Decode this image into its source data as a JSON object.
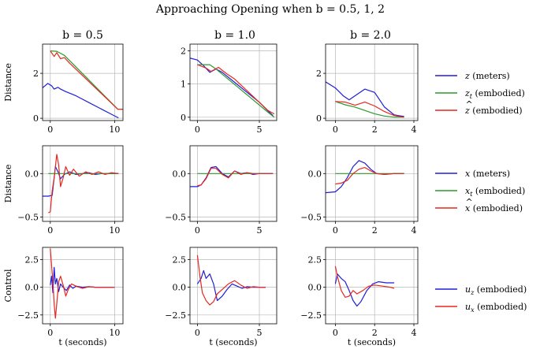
{
  "chart_data": {
    "type": "line",
    "title": "Approaching Opening when b = 0.5, 1, 2",
    "columns": [
      "b = 0.5",
      "b = 1.0",
      "b = 2.0"
    ],
    "xlabel": "t (seconds)",
    "colors": {
      "blue": "#1f1fd6",
      "green": "#2a9a2a",
      "red": "#e8261f"
    },
    "panels": [
      {
        "row": 0,
        "col": 0,
        "ylabel": "Distance",
        "xlim": [
          -1.2,
          11.3
        ],
        "ylim": [
          -0.1,
          3.3
        ],
        "xticks": [
          0,
          10
        ],
        "yticks": [
          0,
          2
        ],
        "xticklabels": [
          "0",
          "10"
        ],
        "yticklabels": [
          "0",
          "2"
        ],
        "series": [
          {
            "name": "z",
            "color": "blue",
            "x": [
              -1.2,
              -0.4,
              0.2,
              0.6,
              1.2,
              1.6,
              2.3,
              4,
              6,
              8,
              9.5,
              10.6
            ],
            "y": [
              1.35,
              1.55,
              1.45,
              1.3,
              1.38,
              1.3,
              1.2,
              1.0,
              0.7,
              0.4,
              0.18,
              0.02
            ]
          },
          {
            "name": "z_t",
            "color": "green",
            "x": [
              0,
              1,
              2.2,
              10.5,
              10.5,
              11.3
            ],
            "y": [
              3.0,
              2.98,
              2.8,
              0.4,
              0.4,
              0.4
            ]
          },
          {
            "name": "z_hat",
            "color": "red",
            "x": [
              0,
              0.6,
              1,
              1.6,
              2.2,
              3,
              10.5,
              10.5,
              11.3
            ],
            "y": [
              3.0,
              2.75,
              2.92,
              2.65,
              2.7,
              2.45,
              0.4,
              0.4,
              0.4
            ]
          }
        ]
      },
      {
        "row": 0,
        "col": 1,
        "ylabel": "",
        "xlim": [
          -0.6,
          6.4
        ],
        "ylim": [
          -0.1,
          2.2
        ],
        "xticks": [
          0,
          5
        ],
        "yticks": [
          0,
          1,
          2
        ],
        "xticklabels": [
          "0",
          "5"
        ],
        "yticklabels": [
          "0",
          "1",
          "2"
        ],
        "series": [
          {
            "name": "z",
            "color": "blue",
            "x": [
              -0.6,
              0,
              0.5,
              1,
              1.5,
              2,
              3,
              4,
              5,
              5.8,
              6.1
            ],
            "y": [
              1.78,
              1.72,
              1.55,
              1.35,
              1.45,
              1.35,
              1.05,
              0.75,
              0.45,
              0.15,
              0.05
            ]
          },
          {
            "name": "z_t",
            "color": "green",
            "x": [
              0,
              1,
              1.5,
              5.7,
              6.2
            ],
            "y": [
              1.58,
              1.58,
              1.45,
              0.15,
              0.0
            ]
          },
          {
            "name": "z_hat",
            "color": "red",
            "x": [
              0,
              0.7,
              1.1,
              1.7,
              2.4,
              3,
              5.7,
              6.2
            ],
            "y": [
              1.58,
              1.48,
              1.38,
              1.5,
              1.3,
              1.15,
              0.2,
              0.1
            ]
          }
        ]
      },
      {
        "row": 0,
        "col": 2,
        "ylabel": "",
        "xlim": [
          -0.5,
          4.2
        ],
        "ylim": [
          -0.1,
          3.3
        ],
        "xticks": [
          0,
          2,
          4
        ],
        "yticks": [
          0,
          2
        ],
        "xticklabels": [
          "0",
          "2",
          "4"
        ],
        "yticklabels": [
          "0",
          "2"
        ],
        "series": [
          {
            "name": "z",
            "color": "blue",
            "x": [
              -0.5,
              0,
              0.4,
              0.7,
              1,
              1.5,
              2,
              2.5,
              3,
              3.5
            ],
            "y": [
              1.62,
              1.35,
              1.0,
              0.82,
              1.0,
              1.3,
              1.15,
              0.5,
              0.15,
              0.08
            ]
          },
          {
            "name": "z_t",
            "color": "green",
            "x": [
              0,
              0.5,
              1,
              1.5,
              2,
              2.5,
              3,
              3.5
            ],
            "y": [
              0.75,
              0.6,
              0.5,
              0.35,
              0.2,
              0.1,
              0.05,
              0.05
            ]
          },
          {
            "name": "z_hat",
            "color": "red",
            "x": [
              0,
              0.5,
              1,
              1.5,
              2,
              2.5,
              3,
              3.5
            ],
            "y": [
              0.75,
              0.72,
              0.58,
              0.72,
              0.55,
              0.3,
              0.12,
              0.05
            ]
          }
        ]
      },
      {
        "row": 1,
        "col": 0,
        "ylabel": "Distance",
        "xlim": [
          -1.2,
          11.3
        ],
        "ylim": [
          -0.55,
          0.32
        ],
        "xticks": [
          0,
          10
        ],
        "yticks": [
          -0.5,
          0
        ],
        "xticklabels": [
          "0",
          "10"
        ],
        "yticklabels": [
          "−0.5",
          "0.0"
        ],
        "series": [
          {
            "name": "x",
            "color": "blue",
            "x": [
              -1.2,
              -0.3,
              0.3,
              0.8,
              1.2,
              1.6,
              2.2,
              3,
              4,
              5,
              6,
              7,
              8,
              9,
              10,
              10.6
            ],
            "y": [
              -0.26,
              -0.26,
              -0.25,
              0.08,
              0.02,
              -0.06,
              -0.01,
              0.02,
              -0.01,
              0.0,
              0.01,
              -0.01,
              0.0,
              0.0,
              0.0,
              0.0
            ]
          },
          {
            "name": "x_t",
            "color": "green",
            "x": [
              -0.3,
              10.6
            ],
            "y": [
              0.0,
              0.0
            ]
          },
          {
            "name": "x_hat",
            "color": "red",
            "x": [
              -0.3,
              0,
              0.3,
              0.6,
              1,
              1.3,
              1.6,
              2,
              2.4,
              3,
              3.6,
              4.5,
              5.5,
              6.5,
              7.5,
              8.5,
              9.5,
              10.6
            ],
            "y": [
              -0.45,
              -0.44,
              -0.2,
              -0.05,
              0.22,
              0.1,
              -0.15,
              -0.05,
              0.08,
              -0.02,
              0.05,
              -0.03,
              0.02,
              -0.01,
              0.02,
              -0.01,
              0.01,
              0.0
            ]
          }
        ]
      },
      {
        "row": 1,
        "col": 1,
        "ylabel": "",
        "xlim": [
          -0.6,
          6.4
        ],
        "ylim": [
          -0.55,
          0.32
        ],
        "xticks": [
          0,
          5
        ],
        "yticks": [
          -0.5,
          0
        ],
        "xticklabels": [
          "0",
          "5"
        ],
        "yticklabels": [
          "−0.5",
          "0.0"
        ],
        "series": [
          {
            "name": "x",
            "color": "blue",
            "x": [
              -0.6,
              0,
              0.3,
              0.7,
              1.1,
              1.5,
              2,
              2.5,
              3,
              3.5,
              4,
              4.5,
              5,
              5.5,
              6.1
            ],
            "y": [
              -0.15,
              -0.15,
              -0.13,
              -0.05,
              0.07,
              0.08,
              0.0,
              -0.04,
              0.03,
              0.0,
              0.01,
              -0.01,
              0.0,
              0.0,
              0.0
            ]
          },
          {
            "name": "x_t",
            "color": "green",
            "x": [
              0,
              6.1
            ],
            "y": [
              0.0,
              0.0
            ]
          },
          {
            "name": "x_hat",
            "color": "red",
            "x": [
              0,
              0.3,
              0.7,
              1.1,
              1.5,
              2,
              2.5,
              3,
              3.5,
              4,
              4.5,
              5,
              5.5,
              6.1
            ],
            "y": [
              -0.14,
              -0.13,
              -0.06,
              0.06,
              0.06,
              -0.01,
              -0.05,
              0.03,
              -0.01,
              0.01,
              0.0,
              0.0,
              0.0,
              0.0
            ]
          }
        ]
      },
      {
        "row": 1,
        "col": 2,
        "ylabel": "",
        "xlim": [
          -0.5,
          4.2
        ],
        "ylim": [
          -0.55,
          0.32
        ],
        "xticks": [
          0,
          2,
          4
        ],
        "yticks": [
          -0.5,
          0
        ],
        "xticklabels": [
          "0",
          "2",
          "4"
        ],
        "yticklabels": [
          "−0.5",
          "0.0"
        ],
        "series": [
          {
            "name": "x",
            "color": "blue",
            "x": [
              -0.5,
              0,
              0.3,
              0.6,
              0.9,
              1.2,
              1.5,
              1.8,
              2.1,
              2.5,
              3,
              3.5
            ],
            "y": [
              -0.22,
              -0.21,
              -0.15,
              -0.05,
              0.08,
              0.15,
              0.12,
              0.05,
              0.0,
              -0.01,
              0.0,
              0.0
            ]
          },
          {
            "name": "x_t",
            "color": "green",
            "x": [
              0,
              3.5
            ],
            "y": [
              0.0,
              0.0
            ]
          },
          {
            "name": "x_hat",
            "color": "red",
            "x": [
              0,
              0.3,
              0.6,
              0.9,
              1.2,
              1.5,
              1.8,
              2.1,
              2.5,
              3,
              3.5
            ],
            "y": [
              -0.12,
              -0.11,
              -0.08,
              0.0,
              0.05,
              0.07,
              0.03,
              0.0,
              -0.01,
              0.0,
              0.0
            ]
          }
        ]
      },
      {
        "row": 2,
        "col": 0,
        "ylabel": "Control",
        "xlim": [
          -1.2,
          11.3
        ],
        "ylim": [
          -3.3,
          3.6
        ],
        "xticks": [
          0,
          10
        ],
        "yticks": [
          -2.5,
          0,
          2.5
        ],
        "xticklabels": [
          "0",
          "10"
        ],
        "yticklabels": [
          "−2.5",
          "0.0",
          "2.5"
        ],
        "series": [
          {
            "name": "u_z",
            "color": "blue",
            "x": [
              0,
              0.2,
              0.4,
              0.6,
              0.8,
              1,
              1.3,
              1.6,
              2,
              2.5,
              3,
              3.5,
              4,
              5,
              6,
              7,
              8,
              9,
              10
            ],
            "y": [
              0.2,
              1.0,
              -0.5,
              1.8,
              0.3,
              0.8,
              -0.4,
              0.3,
              0.0,
              -0.3,
              0.2,
              -0.1,
              0.1,
              0.0,
              0.05,
              0.0,
              0.0,
              0.0,
              0.0
            ]
          },
          {
            "name": "u_x",
            "color": "red",
            "x": [
              0,
              0.2,
              0.4,
              0.6,
              0.8,
              1,
              1.3,
              1.6,
              2,
              2.4,
              2.8,
              3.3,
              4,
              5,
              6,
              7,
              8,
              9,
              10
            ],
            "y": [
              3.5,
              2.0,
              0.5,
              -1.5,
              -2.8,
              -1.5,
              0.5,
              1.0,
              0.2,
              -0.8,
              -0.2,
              0.3,
              0.1,
              -0.1,
              0.05,
              0.0,
              0.0,
              0.0,
              0.0
            ]
          }
        ]
      },
      {
        "row": 2,
        "col": 1,
        "ylabel": "",
        "xlim": [
          -0.6,
          6.4
        ],
        "ylim": [
          -3.3,
          3.6
        ],
        "xticks": [
          0,
          5
        ],
        "yticks": [
          -2.5,
          0,
          2.5
        ],
        "xticklabels": [
          "0",
          "5"
        ],
        "yticklabels": [
          "−2.5",
          "0.0",
          "2.5"
        ],
        "series": [
          {
            "name": "u_z",
            "color": "blue",
            "x": [
              0,
              0.3,
              0.5,
              0.7,
              1,
              1.3,
              1.6,
              2,
              2.4,
              2.8,
              3.2,
              3.6,
              4,
              4.5,
              5,
              5.5
            ],
            "y": [
              0.3,
              0.8,
              1.5,
              0.8,
              1.2,
              0.3,
              -1.2,
              -0.8,
              -0.2,
              0.3,
              0.1,
              -0.1,
              0.05,
              0.0,
              0.0,
              0.0
            ]
          },
          {
            "name": "u_x",
            "color": "red",
            "x": [
              0,
              0.2,
              0.4,
              0.7,
              1,
              1.3,
              1.6,
              2,
              2.5,
              3,
              3.5,
              4,
              4.5,
              5,
              5.5
            ],
            "y": [
              2.9,
              1.0,
              -0.5,
              -1.2,
              -1.6,
              -1.3,
              -0.6,
              -0.2,
              0.3,
              0.6,
              0.2,
              -0.1,
              0.05,
              0.0,
              0.0
            ]
          }
        ]
      },
      {
        "row": 2,
        "col": 2,
        "ylabel": "",
        "xlim": [
          -0.5,
          4.2
        ],
        "ylim": [
          -3.3,
          3.6
        ],
        "xticks": [
          0,
          2,
          4
        ],
        "yticks": [
          -2.5,
          0,
          2.5
        ],
        "xticklabels": [
          "0",
          "2",
          "4"
        ],
        "yticklabels": [
          "−2.5",
          "0.0",
          "2.5"
        ],
        "series": [
          {
            "name": "u_z",
            "color": "blue",
            "x": [
              0,
              0.1,
              0.3,
              0.5,
              0.7,
              0.9,
              1.1,
              1.3,
              1.6,
              1.9,
              2.2,
              2.6,
              3
            ],
            "y": [
              0.3,
              1.2,
              0.8,
              0.5,
              -0.3,
              -1.2,
              -1.7,
              -1.3,
              -0.3,
              0.3,
              0.5,
              0.4,
              0.4
            ]
          },
          {
            "name": "u_x",
            "color": "red",
            "x": [
              0,
              0.1,
              0.3,
              0.5,
              0.7,
              0.9,
              1.1,
              1.4,
              1.7,
              2,
              2.4,
              2.8,
              3
            ],
            "y": [
              1.9,
              1.0,
              -0.3,
              -0.9,
              -0.8,
              -0.3,
              -0.6,
              -0.3,
              0.1,
              0.2,
              0.1,
              0.0,
              -0.1
            ]
          }
        ]
      }
    ],
    "legends": [
      {
        "row": 0,
        "entries": [
          {
            "color": "blue",
            "main": "z",
            "sub": "",
            "hat": false,
            "desc": "(meters)"
          },
          {
            "color": "green",
            "main": "z",
            "sub": "t",
            "hat": false,
            "desc": "(embodied)"
          },
          {
            "color": "red",
            "main": "z",
            "sub": "",
            "hat": true,
            "desc": "(embodied)"
          }
        ]
      },
      {
        "row": 1,
        "entries": [
          {
            "color": "blue",
            "main": "x",
            "sub": "",
            "hat": false,
            "desc": "(meters)"
          },
          {
            "color": "green",
            "main": "x",
            "sub": "t",
            "hat": false,
            "desc": "(embodied)"
          },
          {
            "color": "red",
            "main": "x",
            "sub": "",
            "hat": true,
            "desc": "(embodied)"
          }
        ]
      },
      {
        "row": 2,
        "entries": [
          {
            "color": "blue",
            "main": "u",
            "sub": "z",
            "hat": false,
            "desc": "(embodied)"
          },
          {
            "color": "red",
            "main": "u",
            "sub": "x",
            "hat": false,
            "desc": "(embodied)"
          }
        ]
      }
    ]
  }
}
